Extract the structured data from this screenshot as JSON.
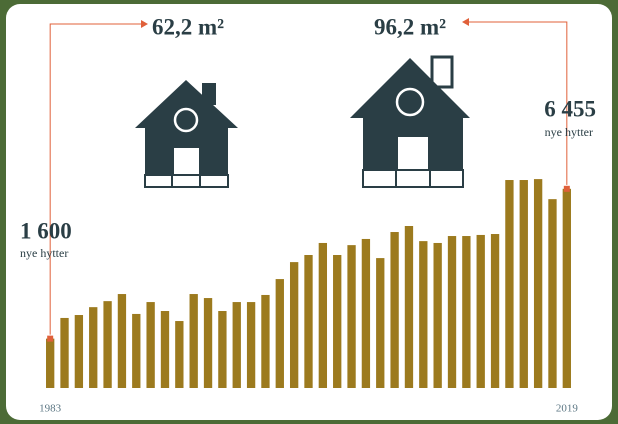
{
  "chart_data": {
    "type": "bar",
    "categories": [
      "1983",
      null,
      null,
      null,
      null,
      null,
      null,
      null,
      null,
      null,
      null,
      null,
      null,
      null,
      null,
      null,
      null,
      null,
      null,
      null,
      null,
      null,
      null,
      null,
      null,
      null,
      null,
      null,
      null,
      null,
      null,
      null,
      null,
      null,
      null,
      null,
      "2019"
    ],
    "values": [
      1600,
      2270,
      2365,
      2620,
      2815,
      3045,
      2400,
      2785,
      2495,
      2170,
      3045,
      2915,
      2495,
      2785,
      2785,
      3015,
      3530,
      4080,
      4310,
      4700,
      4310,
      4630,
      4830,
      4210,
      5055,
      5250,
      4760,
      4700,
      4925,
      4925,
      4960,
      4990,
      6740,
      6740,
      6770,
      6120,
      6455
    ],
    "value_labels": [
      "1 600",
      null,
      null,
      null,
      null,
      null,
      null,
      null,
      null,
      null,
      null,
      null,
      null,
      null,
      null,
      null,
      null,
      null,
      null,
      null,
      null,
      null,
      null,
      null,
      null,
      null,
      null,
      null,
      null,
      null,
      null,
      null,
      null,
      null,
      null,
      null,
      "6 455"
    ],
    "unit_label": "nye hytter",
    "house_sizes": [
      "62,2 m²",
      "96,2 m²"
    ],
    "color": "#9c7a1e",
    "highlight_color": "#e0603a",
    "ylim": [
      0,
      7000
    ]
  }
}
